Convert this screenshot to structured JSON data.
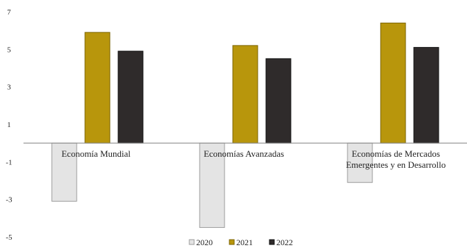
{
  "chart_data": {
    "type": "bar",
    "categories": [
      [
        "Economía Mundial"
      ],
      [
        "Economías Avanzadas"
      ],
      [
        "Economías de Mercados",
        "Emergentes y en Desarrollo"
      ]
    ],
    "series": [
      {
        "name": "2020",
        "values": [
          -3.1,
          -4.5,
          -2.1
        ],
        "color": "#e4e4e4",
        "edge": "#9a9a9a"
      },
      {
        "name": "2021",
        "values": [
          5.9,
          5.2,
          6.4
        ],
        "color": "#b8960c",
        "edge": "#7a6200"
      },
      {
        "name": "2022",
        "values": [
          4.9,
          4.5,
          5.1
        ],
        "color": "#2f2b2b",
        "edge": "#111111"
      }
    ],
    "yticks": [
      7,
      5,
      3,
      1,
      -1,
      -3,
      -5
    ],
    "ylim": [
      -5,
      7
    ],
    "legend_position": "bottom",
    "grid": false
  }
}
